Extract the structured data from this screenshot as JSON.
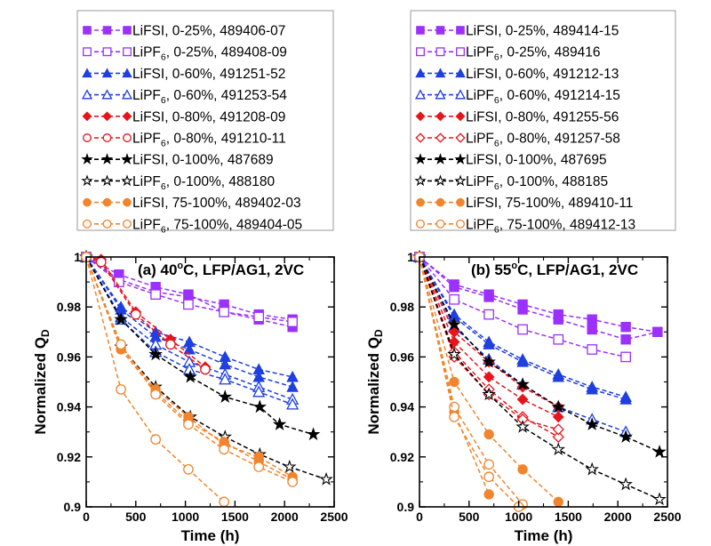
{
  "chart_data": [
    {
      "type": "scatter",
      "title_prefix": "(a) 40",
      "title_sup": "o",
      "title_suffix": "C, LFP/AG1, 2VC",
      "xlabel": "Time (h)",
      "ylabel": "Normalized Q",
      "ylabel_sub": "D",
      "xlim": [
        0,
        2500
      ],
      "ylim": [
        0.9,
        1.0
      ],
      "xticks": [
        0,
        500,
        1000,
        1500,
        2000,
        2500
      ],
      "yticks": [
        0.9,
        0.92,
        0.94,
        0.96,
        0.98,
        1
      ],
      "ytick_labels": [
        "0.9",
        "0.92",
        "0.94",
        "0.96",
        "0.98",
        "1"
      ],
      "series": [
        {
          "name": "LiFSI, 0-25%, 489406-07",
          "salt": "LiFSI",
          "sub": "",
          "desc": ", 0-25%, 489406-07",
          "color": "#9b30ff",
          "marker": "square",
          "filled": true,
          "x": [
            0,
            330,
            700,
            1030,
            1390,
            1740,
            2080
          ],
          "y": [
            1.0,
            0.991,
            0.986,
            0.984,
            0.981,
            0.977,
            0.975
          ]
        },
        {
          "name": "LiFSI, 0-25%, 489407",
          "salt": "LiFSI",
          "color": "#9b30ff",
          "marker": "square",
          "filled": true,
          "hide_legend": true,
          "x": [
            0,
            330,
            700,
            1030,
            1390,
            1740,
            2080
          ],
          "y": [
            1.0,
            0.993,
            0.988,
            0.985,
            0.978,
            0.975,
            0.972
          ]
        },
        {
          "name": "LiPF6, 0-25%, 489408-09",
          "salt": "LiPF",
          "sub": "6",
          "desc": ", 0-25%, 489408-09",
          "color": "#9b30ff",
          "marker": "square",
          "filled": false,
          "x": [
            0,
            330,
            700,
            1030,
            1390,
            1740,
            2080
          ],
          "y": [
            1.0,
            0.99,
            0.985,
            0.981,
            0.978,
            0.976,
            0.974
          ]
        },
        {
          "name": "LiFSI, 0-60%, 491251-52",
          "salt": "LiFSI",
          "sub": "",
          "desc": ", 0-60%, 491251-52",
          "color": "#1f3fe0",
          "marker": "triangle",
          "filled": true,
          "x": [
            0,
            350,
            700,
            1040,
            1400,
            1740,
            2080
          ],
          "y": [
            1.0,
            0.98,
            0.97,
            0.966,
            0.96,
            0.955,
            0.952
          ]
        },
        {
          "name": "LiFSI, 0-60%, 491252",
          "salt": "LiFSI",
          "color": "#1f3fe0",
          "marker": "triangle",
          "filled": true,
          "hide_legend": true,
          "x": [
            0,
            350,
            700,
            1040,
            1400,
            1740,
            2080
          ],
          "y": [
            1.0,
            0.979,
            0.968,
            0.963,
            0.957,
            0.952,
            0.948
          ]
        },
        {
          "name": "LiPF6, 0-60%, 491253-54",
          "salt": "LiPF",
          "sub": "6",
          "desc": ", 0-60%, 491253-54",
          "color": "#1f3fe0",
          "marker": "triangle",
          "filled": false,
          "x": [
            0,
            350,
            700,
            1040,
            1400,
            1740,
            2080
          ],
          "y": [
            1.0,
            0.976,
            0.965,
            0.958,
            0.953,
            0.948,
            0.943
          ]
        },
        {
          "name": "LiPF6, 0-60%, 491254",
          "salt": "LiPF",
          "color": "#1f3fe0",
          "marker": "triangle",
          "filled": false,
          "hide_legend": true,
          "x": [
            0,
            350,
            700,
            1040,
            1400,
            1740,
            2080
          ],
          "y": [
            1.0,
            0.975,
            0.962,
            0.955,
            0.951,
            0.946,
            0.941
          ]
        },
        {
          "name": "LiFSI, 0-80%, 491208-09",
          "salt": "LiFSI",
          "sub": "",
          "desc": ", 0-80%, 491208-09",
          "color": "#e8141c",
          "marker": "diamond",
          "filled": true,
          "x": [
            0,
            150,
            500,
            850,
            1200
          ],
          "y": [
            1.0,
            0.999,
            0.978,
            0.967,
            0.956
          ]
        },
        {
          "name": "LiPF6, 0-80%, 491210-11",
          "salt": "LiPF",
          "sub": "6",
          "desc": ", 0-80%, 491210-11",
          "color": "#e8141c",
          "marker": "circle",
          "filled": false,
          "x": [
            0,
            150,
            500,
            850,
            1200
          ],
          "y": [
            1.0,
            0.998,
            0.977,
            0.965,
            0.955
          ]
        },
        {
          "name": "LiFSI, 0-100%, 487689",
          "salt": "LiFSI",
          "sub": "",
          "desc": ", 0-100%, 487689",
          "color": "#000000",
          "marker": "star",
          "filled": true,
          "x": [
            0,
            350,
            700,
            1050,
            1400,
            1750,
            1950,
            2290
          ],
          "y": [
            1.0,
            0.975,
            0.961,
            0.952,
            0.944,
            0.94,
            0.933,
            0.929
          ]
        },
        {
          "name": "LiPF6, 0-100%, 488180",
          "salt": "LiPF",
          "sub": "6",
          "desc": ", 0-100%, 488180",
          "color": "#000000",
          "marker": "star",
          "filled": false,
          "x": [
            0,
            350,
            700,
            1050,
            1400,
            1750,
            2050,
            2420
          ],
          "y": [
            1.0,
            0.964,
            0.948,
            0.936,
            0.928,
            0.921,
            0.916,
            0.911
          ]
        },
        {
          "name": "LiFSI, 75-100%, 489402-03",
          "salt": "LiFSI",
          "sub": "",
          "desc": ", 75-100%, 489402-03",
          "color": "#f0852d",
          "marker": "circle",
          "filled": true,
          "x": [
            0,
            350,
            700,
            1030,
            1390,
            1740,
            2080
          ],
          "y": [
            1.0,
            0.964,
            0.947,
            0.936,
            0.925,
            0.92,
            0.912
          ]
        },
        {
          "name": "LiFSI, 75-100%, 489403",
          "salt": "LiFSI",
          "color": "#f0852d",
          "marker": "circle",
          "filled": true,
          "hide_legend": true,
          "x": [
            0,
            350,
            700,
            1030,
            1390,
            1740,
            2080
          ],
          "y": [
            1.0,
            0.963,
            0.946,
            0.934,
            0.926,
            0.918,
            0.911
          ]
        },
        {
          "name": "LiPF6, 75-100%, 489404-05",
          "salt": "LiPF",
          "sub": "6",
          "desc": ", 75-100%, 489404-05",
          "color": "#f0852d",
          "marker": "circle",
          "filled": false,
          "x": [
            0,
            350,
            700,
            1030,
            1390,
            1740,
            2080
          ],
          "y": [
            1.0,
            0.965,
            0.945,
            0.933,
            0.923,
            0.916,
            0.91
          ]
        },
        {
          "name": "LiPF6, 75-100%, 489405",
          "salt": "LiPF",
          "color": "#f0852d",
          "marker": "circle",
          "filled": false,
          "hide_legend": true,
          "x": [
            0,
            350,
            700,
            1030,
            1390
          ],
          "y": [
            1.0,
            0.947,
            0.927,
            0.915,
            0.902
          ]
        }
      ]
    },
    {
      "type": "scatter",
      "title_prefix": "(b) 55",
      "title_sup": "o",
      "title_suffix": "C, LFP/AG1, 2VC",
      "xlabel": "Time (h)",
      "ylabel": "Normalized Q",
      "ylabel_sub": "D",
      "xlim": [
        0,
        2500
      ],
      "ylim": [
        0.9,
        1.0
      ],
      "xticks": [
        0,
        500,
        1000,
        1500,
        2000,
        2500
      ],
      "yticks": [
        0.9,
        0.92,
        0.94,
        0.96,
        0.98,
        1
      ],
      "ytick_labels": [
        "0.9",
        "0.92",
        "0.94",
        "0.96",
        "0.98",
        "1"
      ],
      "series": [
        {
          "name": "LiFSI, 0-25%, 489414-15",
          "salt": "LiFSI",
          "sub": "",
          "desc": ", 0-25%, 489414-15",
          "color": "#9b30ff",
          "marker": "square",
          "filled": true,
          "x": [
            0,
            350,
            700,
            1040,
            1400,
            1740,
            2080,
            2400
          ],
          "y": [
            1.0,
            0.989,
            0.985,
            0.981,
            0.977,
            0.975,
            0.972,
            0.97
          ]
        },
        {
          "name": "LiFSI, 0-25%, 489415",
          "salt": "LiFSI",
          "color": "#9b30ff",
          "marker": "square",
          "filled": true,
          "hide_legend": true,
          "x": [
            0,
            350,
            700,
            1040,
            1400,
            1740,
            2080,
            2400
          ],
          "y": [
            1.0,
            0.988,
            0.984,
            0.979,
            0.975,
            0.971,
            0.967,
            0.97
          ]
        },
        {
          "name": "LiPF6, 0-25%, 489416",
          "salt": "LiPF",
          "sub": "6",
          "desc": ", 0-25%, 489416",
          "color": "#9b30ff",
          "marker": "square",
          "filled": false,
          "x": [
            0,
            350,
            700,
            1040,
            1400,
            1740,
            2080
          ],
          "y": [
            1.0,
            0.983,
            0.977,
            0.971,
            0.967,
            0.963,
            0.96
          ]
        },
        {
          "name": "LiFSI, 0-60%, 491212-13",
          "salt": "LiFSI",
          "sub": "",
          "desc": ", 0-60%, 491212-13",
          "color": "#1f3fe0",
          "marker": "triangle",
          "filled": true,
          "x": [
            0,
            350,
            700,
            1040,
            1400,
            1740,
            2080
          ],
          "y": [
            1.0,
            0.977,
            0.966,
            0.959,
            0.953,
            0.948,
            0.944
          ]
        },
        {
          "name": "LiFSI, 0-60%, 491213",
          "salt": "LiFSI",
          "color": "#1f3fe0",
          "marker": "triangle",
          "filled": true,
          "hide_legend": true,
          "x": [
            0,
            350,
            700,
            1040,
            1400,
            1740,
            2080
          ],
          "y": [
            1.0,
            0.976,
            0.965,
            0.958,
            0.952,
            0.947,
            0.943
          ]
        },
        {
          "name": "LiPF6, 0-60%, 491214-15",
          "salt": "LiPF",
          "sub": "6",
          "desc": ", 0-60%, 491214-15",
          "color": "#1f3fe0",
          "marker": "triangle",
          "filled": false,
          "x": [
            0,
            350,
            700,
            1040,
            1400,
            1740,
            2080
          ],
          "y": [
            1.0,
            0.972,
            0.959,
            0.949,
            0.94,
            0.935,
            0.93
          ]
        },
        {
          "name": "LiFSI, 0-80%, 491255-56",
          "salt": "LiFSI",
          "sub": "",
          "desc": ", 0-80%, 491255-56",
          "color": "#e8141c",
          "marker": "diamond",
          "filled": true,
          "x": [
            0,
            350,
            700,
            1040,
            1400
          ],
          "y": [
            1.0,
            0.97,
            0.958,
            0.948,
            0.94
          ]
        },
        {
          "name": "LiFSI, 0-80%, 491256",
          "salt": "LiFSI",
          "color": "#e8141c",
          "marker": "diamond",
          "filled": true,
          "hide_legend": true,
          "x": [
            0,
            350,
            700,
            1040,
            1400
          ],
          "y": [
            1.0,
            0.966,
            0.952,
            0.943,
            0.936
          ]
        },
        {
          "name": "LiPF6, 0-80%, 491257-58",
          "salt": "LiPF",
          "sub": "6",
          "desc": ", 0-80%, 491257-58",
          "color": "#e8141c",
          "marker": "diamond",
          "filled": false,
          "x": [
            0,
            350,
            700,
            1040,
            1400
          ],
          "y": [
            1.0,
            0.962,
            0.947,
            0.936,
            0.928
          ]
        },
        {
          "name": "LiPF6, 0-80%, 491258",
          "salt": "LiPF",
          "color": "#e8141c",
          "marker": "diamond",
          "filled": false,
          "hide_legend": true,
          "x": [
            0,
            350,
            700,
            1040,
            1400
          ],
          "y": [
            1.0,
            0.96,
            0.945,
            0.935,
            0.931
          ]
        },
        {
          "name": "LiFSI, 0-100%, 487695",
          "salt": "LiFSI",
          "sub": "",
          "desc": ", 0-100%, 487695",
          "color": "#000000",
          "marker": "star",
          "filled": true,
          "x": [
            0,
            350,
            700,
            1040,
            1400,
            1740,
            2080,
            2420
          ],
          "y": [
            1.0,
            0.973,
            0.958,
            0.949,
            0.94,
            0.933,
            0.928,
            0.922
          ]
        },
        {
          "name": "LiPF6, 0-100%, 488185",
          "salt": "LiPF",
          "sub": "6",
          "desc": ", 0-100%, 488185",
          "color": "#000000",
          "marker": "star",
          "filled": false,
          "x": [
            0,
            350,
            700,
            1040,
            1400,
            1740,
            2080,
            2420
          ],
          "y": [
            1.0,
            0.961,
            0.945,
            0.932,
            0.923,
            0.915,
            0.909,
            0.903
          ]
        },
        {
          "name": "LiFSI, 75-100%, 489410-11",
          "salt": "LiFSI",
          "sub": "",
          "desc": ", 75-100%, 489410-11",
          "color": "#f0852d",
          "marker": "circle",
          "filled": true,
          "x": [
            0,
            350,
            700,
            1040,
            1400
          ],
          "y": [
            1.0,
            0.95,
            0.929,
            0.915,
            0.902
          ]
        },
        {
          "name": "LiFSI, 75-100%, 489411",
          "salt": "LiFSI",
          "color": "#f0852d",
          "marker": "circle",
          "filled": true,
          "hide_legend": true,
          "x": [
            0,
            350,
            700
          ],
          "y": [
            1.0,
            0.938,
            0.905
          ]
        },
        {
          "name": "LiPF6, 75-100%, 489412-13",
          "salt": "LiPF",
          "sub": "6",
          "desc": ", 75-100%, 489412-13",
          "color": "#f0852d",
          "marker": "circle",
          "filled": false,
          "x": [
            0,
            350,
            700,
            1040
          ],
          "y": [
            1.0,
            0.94,
            0.917,
            0.901
          ]
        },
        {
          "name": "LiPF6, 75-100%, 489413",
          "salt": "LiPF",
          "color": "#f0852d",
          "marker": "circle",
          "filled": false,
          "hide_legend": true,
          "x": [
            0,
            350,
            700,
            1000
          ],
          "y": [
            1.0,
            0.936,
            0.912,
            0.9
          ]
        }
      ]
    }
  ]
}
